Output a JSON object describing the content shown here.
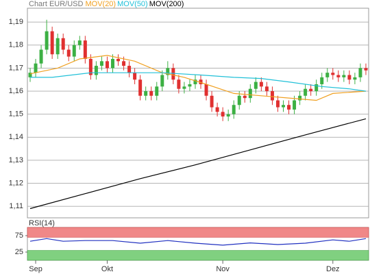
{
  "chart_data": [
    {
      "type": "candlestick",
      "title": "Chart EUR/USD",
      "open": [
        1.166,
        1.168,
        1.172,
        1.178,
        1.186,
        1.176,
        1.183,
        1.178,
        1.175,
        1.18,
        1.182,
        1.174,
        1.167,
        1.171,
        1.173,
        1.17,
        1.174,
        1.173,
        1.171,
        1.168,
        1.165,
        1.158,
        1.16,
        1.158,
        1.162,
        1.167,
        1.17,
        1.165,
        1.161,
        1.162,
        1.163,
        1.165,
        1.163,
        1.158,
        1.153,
        1.151,
        1.149,
        1.15,
        1.154,
        1.158,
        1.157,
        1.161,
        1.164,
        1.162,
        1.16,
        1.156,
        1.153,
        1.154,
        1.152,
        1.156,
        1.158,
        1.161,
        1.16,
        1.163,
        1.166,
        1.168,
        1.167,
        1.166,
        1.167,
        1.165,
        1.166,
        1.17
      ],
      "high": [
        1.17,
        1.174,
        1.18,
        1.191,
        1.188,
        1.185,
        1.185,
        1.18,
        1.182,
        1.184,
        1.184,
        1.176,
        1.173,
        1.175,
        1.175,
        1.176,
        1.176,
        1.175,
        1.173,
        1.17,
        1.167,
        1.162,
        1.162,
        1.164,
        1.169,
        1.173,
        1.172,
        1.167,
        1.164,
        1.165,
        1.167,
        1.167,
        1.165,
        1.16,
        1.155,
        1.153,
        1.152,
        1.156,
        1.16,
        1.16,
        1.163,
        1.166,
        1.166,
        1.164,
        1.162,
        1.158,
        1.156,
        1.156,
        1.158,
        1.16,
        1.163,
        1.163,
        1.165,
        1.168,
        1.17,
        1.17,
        1.169,
        1.169,
        1.169,
        1.168,
        1.172,
        1.172
      ],
      "low": [
        1.164,
        1.166,
        1.17,
        1.176,
        1.174,
        1.174,
        1.176,
        1.173,
        1.173,
        1.178,
        1.172,
        1.165,
        1.165,
        1.169,
        1.168,
        1.168,
        1.171,
        1.169,
        1.166,
        1.163,
        1.156,
        1.156,
        1.156,
        1.156,
        1.16,
        1.165,
        1.163,
        1.159,
        1.159,
        1.16,
        1.161,
        1.161,
        1.156,
        1.151,
        1.149,
        1.147,
        1.147,
        1.148,
        1.152,
        1.155,
        1.155,
        1.159,
        1.16,
        1.158,
        1.154,
        1.151,
        1.151,
        1.15,
        1.15,
        1.154,
        1.156,
        1.158,
        1.158,
        1.161,
        1.164,
        1.165,
        1.164,
        1.164,
        1.163,
        1.163,
        1.164,
        1.167
      ],
      "close": [
        1.168,
        1.172,
        1.178,
        1.186,
        1.176,
        1.183,
        1.178,
        1.175,
        1.18,
        1.182,
        1.174,
        1.167,
        1.171,
        1.173,
        1.17,
        1.174,
        1.173,
        1.171,
        1.168,
        1.165,
        1.158,
        1.16,
        1.158,
        1.162,
        1.167,
        1.17,
        1.165,
        1.161,
        1.162,
        1.163,
        1.165,
        1.163,
        1.158,
        1.153,
        1.151,
        1.149,
        1.15,
        1.154,
        1.158,
        1.157,
        1.161,
        1.164,
        1.162,
        1.16,
        1.156,
        1.153,
        1.154,
        1.152,
        1.156,
        1.158,
        1.161,
        1.16,
        1.163,
        1.166,
        1.168,
        1.167,
        1.166,
        1.167,
        1.165,
        1.166,
        1.17,
        1.169
      ],
      "up_color": "#3cb043",
      "down_color": "#e03030",
      "series": [
        {
          "name": "MOV(20)",
          "color": "#f0a020",
          "x": [
            0,
            5,
            9,
            14,
            19,
            24,
            28,
            32,
            37,
            42,
            47,
            52,
            55,
            61
          ],
          "values": [
            1.1675,
            1.17,
            1.174,
            1.1755,
            1.173,
            1.168,
            1.166,
            1.163,
            1.159,
            1.158,
            1.157,
            1.156,
            1.159,
            1.16
          ]
        },
        {
          "name": "MOV(50)",
          "color": "#20c0d8",
          "x": [
            0,
            4,
            11,
            20,
            24,
            31,
            37,
            42,
            47,
            53,
            58,
            61
          ],
          "values": [
            1.166,
            1.166,
            1.168,
            1.168,
            1.168,
            1.167,
            1.166,
            1.1655,
            1.164,
            1.162,
            1.161,
            1.16
          ]
        },
        {
          "name": "MOV(200)",
          "color": "#000000",
          "x": [
            0,
            10,
            20,
            30,
            40,
            50,
            61
          ],
          "values": [
            1.109,
            1.1155,
            1.122,
            1.128,
            1.1345,
            1.141,
            1.148
          ]
        }
      ],
      "xlim": [
        -0.5,
        61.5
      ],
      "ylim": [
        1.105,
        1.196
      ],
      "yticks": [
        {
          "value": 1.11,
          "label": "1,11"
        },
        {
          "value": 1.12,
          "label": "1,12"
        },
        {
          "value": 1.13,
          "label": "1,13"
        },
        {
          "value": 1.14,
          "label": "1,14"
        },
        {
          "value": 1.15,
          "label": "1,15"
        },
        {
          "value": 1.16,
          "label": "1,16"
        },
        {
          "value": 1.17,
          "label": "1,17"
        },
        {
          "value": 1.18,
          "label": "1,18"
        },
        {
          "value": 1.19,
          "label": "1,19"
        }
      ],
      "grid": true
    },
    {
      "type": "line",
      "title": "RSI(14)",
      "series": [
        {
          "color": "#2030c0",
          "x": [
            0,
            3,
            6,
            10,
            15,
            20,
            25,
            30,
            35,
            40,
            45,
            50,
            55,
            58,
            61
          ],
          "values": [
            58,
            66,
            58,
            60,
            60,
            52,
            60,
            52,
            46,
            53,
            48,
            52,
            62,
            58,
            66
          ]
        }
      ],
      "xlim": [
        -0.5,
        61.5
      ],
      "xticks": [
        {
          "value": 1,
          "label": "Sep"
        },
        {
          "value": 14,
          "label": "Okt"
        },
        {
          "value": 35,
          "label": "Nov"
        },
        {
          "value": 55,
          "label": "Dez"
        }
      ],
      "ylim": [
        0,
        100
      ],
      "yticks": [
        25,
        75
      ],
      "overbought": 70,
      "oversold": 30,
      "overbought_color": "#f08888",
      "oversold_color": "#80d080"
    }
  ]
}
